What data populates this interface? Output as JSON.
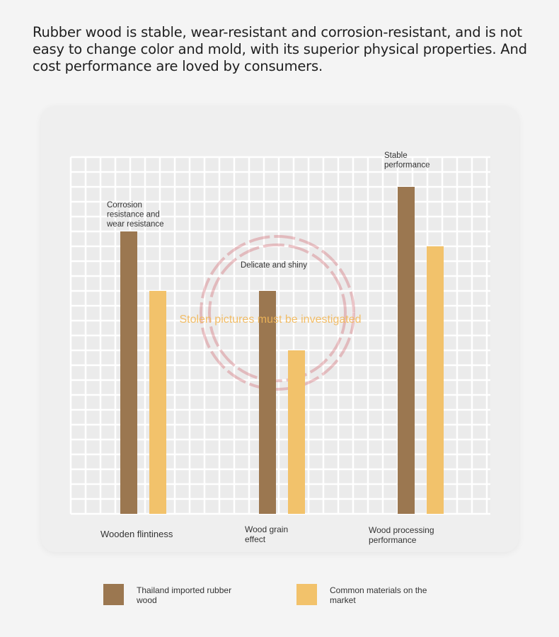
{
  "headline": "Rubber wood is stable, wear-resistant and corrosion-resistant, and is not easy to change color and mold, with its superior physical properties. And cost performance are loved by consumers.",
  "watermark_text": "Stolen pictures must be investigated",
  "chart_data": {
    "type": "bar",
    "title": "",
    "xlabel": "",
    "ylabel": "",
    "ylim": [
      0,
      24
    ],
    "grid": true,
    "categories": [
      "Wooden flintiness",
      "Wood grain effect",
      "Wood processing performance"
    ],
    "category_lines": [
      [
        "Wooden flintiness"
      ],
      [
        "Wood grain",
        "effect"
      ],
      [
        "Wood processing",
        "performance"
      ]
    ],
    "annotations": [
      [
        "Corrosion",
        "resistance and",
        "wear resistance"
      ],
      [
        "Delicate and shiny"
      ],
      [
        "Stable",
        "performance"
      ]
    ],
    "series": [
      {
        "name": "Thailand imported rubber wood",
        "name_lines": [
          "Thailand imported rubber",
          "wood"
        ],
        "color": "#9b7750",
        "values": [
          19,
          15,
          22
        ]
      },
      {
        "name": "Common materials on the market",
        "name_lines": [
          "Common materials on the",
          "market"
        ],
        "color": "#f2c26b",
        "values": [
          15,
          11,
          18
        ]
      }
    ],
    "legend_position": "bottom"
  }
}
